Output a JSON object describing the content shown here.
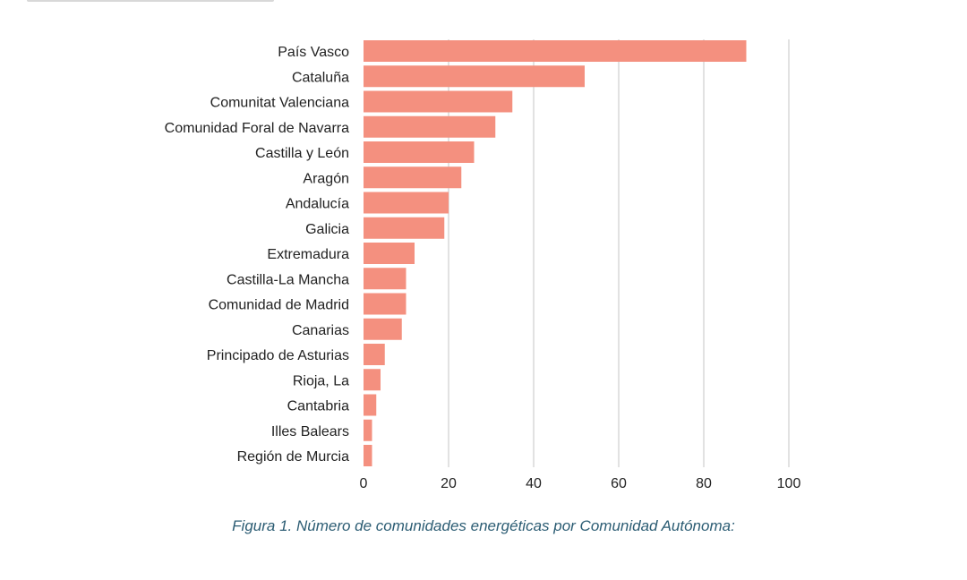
{
  "caption": "Figura 1. Número de comunidades energéticas por Comunidad Autónoma:",
  "colors": {
    "bar": "#f4907f",
    "grid": "#d9d9d9",
    "text": "#222222",
    "caption": "#2b5c73"
  },
  "chart_data": {
    "type": "bar",
    "orientation": "horizontal",
    "categories": [
      "País Vasco",
      "Cataluña",
      "Comunitat Valenciana",
      "Comunidad Foral de Navarra",
      "Castilla y León",
      "Aragón",
      "Andalucía",
      "Galicia",
      "Extremadura",
      "Castilla-La Mancha",
      "Comunidad de Madrid",
      "Canarias",
      "Principado de Asturias",
      "Rioja, La",
      "Cantabria",
      "Illes Balears",
      "Región de Murcia"
    ],
    "values": [
      90,
      52,
      35,
      31,
      26,
      23,
      20,
      19,
      12,
      10,
      10,
      9,
      5,
      4,
      3,
      2,
      2
    ],
    "xlim": [
      0,
      100
    ],
    "xticks": [
      0,
      20,
      40,
      60,
      80,
      100
    ],
    "grid": true,
    "legend": "none"
  }
}
